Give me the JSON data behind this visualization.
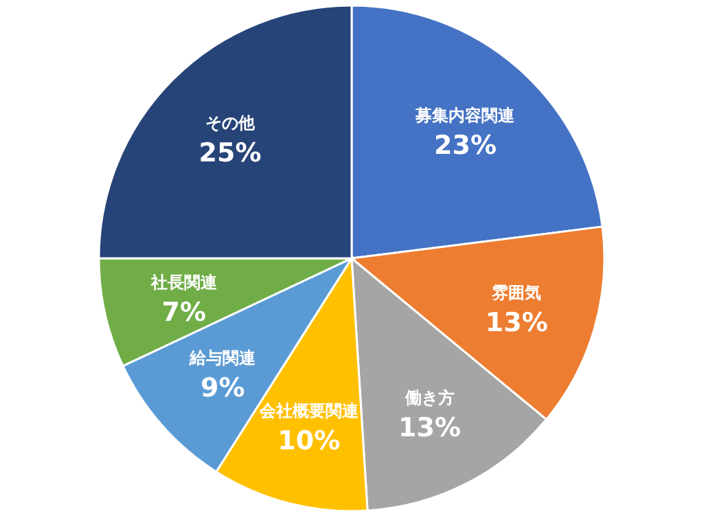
{
  "chart_data": {
    "type": "pie",
    "categories": [
      "募集内容関連",
      "雰囲気",
      "働き方",
      "会社概要関連",
      "給与関連",
      "社長関連",
      "その他"
    ],
    "values": [
      23,
      13,
      13,
      10,
      9,
      7,
      25
    ],
    "value_labels": [
      "23%",
      "13%",
      "13%",
      "10%",
      "9%",
      "7%",
      "25%"
    ],
    "colors": [
      "#4472c4",
      "#ed7d31",
      "#a5a5a5",
      "#ffc000",
      "#5b9bd5",
      "#70ad47",
      "#264478"
    ]
  }
}
